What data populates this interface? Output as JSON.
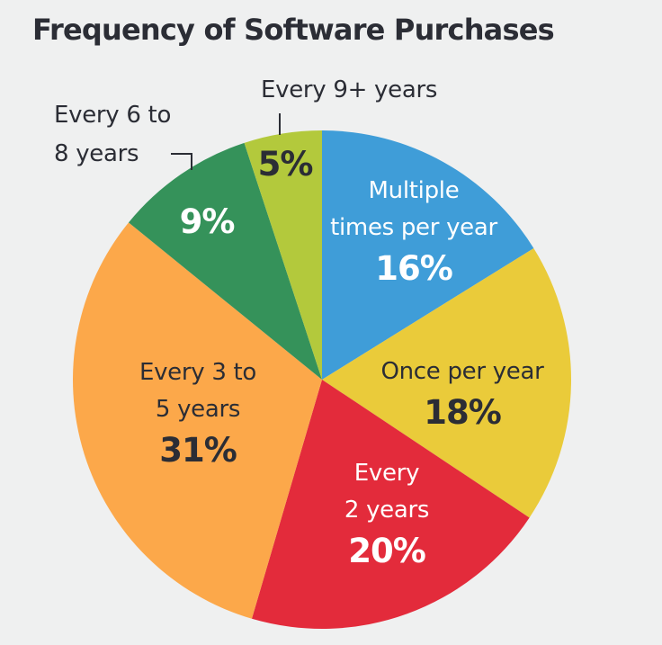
{
  "title": "Frequency of Software Purchases",
  "colors": {
    "background": "#eff0f0",
    "text_dark": "#2b2d35",
    "multiple_per_year": "#3f9dd8",
    "once_per_year": "#eacb3a",
    "every_2_years": "#e32b3b",
    "every_3_to_5_years": "#fca84a",
    "every_6_to_8_years": "#35925a",
    "every_9_plus_years": "#b3c93c"
  },
  "labels": {
    "multiple": {
      "line1": "Multiple",
      "line2": "times per year",
      "pct": "16%"
    },
    "once": {
      "line1": "Once per year",
      "pct": "18%"
    },
    "two": {
      "line1": "Every",
      "line2": "2 years",
      "pct": "20%"
    },
    "three_five": {
      "line1": "Every 3 to",
      "line2": "5 years",
      "pct": "31%"
    },
    "six_eight": {
      "line1": "Every 6 to",
      "line2": "8 years",
      "pct": "9%"
    },
    "nine_plus": {
      "line1": "Every 9+ years",
      "pct": "5%"
    }
  },
  "chart_data": {
    "type": "pie",
    "title": "Frequency of Software Purchases",
    "start_angle": "12 o'clock, clockwise",
    "categories": [
      "Multiple times per year",
      "Once per year",
      "Every 2 years",
      "Every 3 to 5 years",
      "Every 6 to 8 years",
      "Every 9+ years"
    ],
    "values": [
      16,
      18,
      20,
      31,
      9,
      5
    ],
    "unit": "%",
    "colors": [
      "#3f9dd8",
      "#eacb3a",
      "#e32b3b",
      "#fca84a",
      "#35925a",
      "#b3c93c"
    ],
    "legend": "none (direct labels)"
  }
}
